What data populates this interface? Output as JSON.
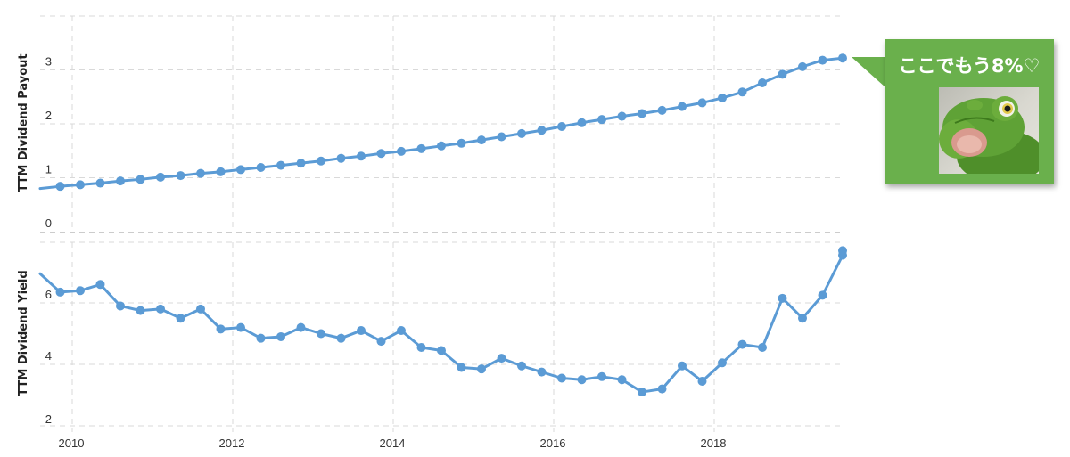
{
  "chart_data": [
    {
      "type": "line",
      "ylabel": "TTM Dividend Payout",
      "yticks": [
        "0",
        "1",
        "2",
        "3"
      ],
      "ylim": [
        0,
        3.25
      ],
      "xlim": [
        2009.6,
        2019.6
      ],
      "grid": true,
      "series": [
        {
          "x": [
            2009.6,
            2009.85,
            2010.1,
            2010.35,
            2010.6,
            2010.85,
            2011.1,
            2011.35,
            2011.6,
            2011.85,
            2012.1,
            2012.35,
            2012.6,
            2012.85,
            2013.1,
            2013.35,
            2013.6,
            2013.85,
            2014.1,
            2014.35,
            2014.6,
            2014.85,
            2015.1,
            2015.35,
            2015.6,
            2015.85,
            2016.1,
            2016.35,
            2016.6,
            2016.85,
            2017.1,
            2017.35,
            2017.6,
            2017.85,
            2018.1,
            2018.35,
            2018.6,
            2018.85,
            2019.1,
            2019.35,
            2019.6
          ],
          "values": [
            0.8,
            0.84,
            0.87,
            0.9,
            0.94,
            0.97,
            1.01,
            1.04,
            1.08,
            1.11,
            1.15,
            1.19,
            1.23,
            1.27,
            1.31,
            1.36,
            1.4,
            1.45,
            1.49,
            1.54,
            1.59,
            1.64,
            1.7,
            1.76,
            1.82,
            1.88,
            1.95,
            2.02,
            2.08,
            2.14,
            2.19,
            2.25,
            2.32,
            2.39,
            2.48,
            2.59,
            2.76,
            2.92,
            3.06,
            3.18,
            3.22
          ]
        }
      ]
    },
    {
      "type": "line",
      "ylabel": "TTM Dividend Yield",
      "yticks": [
        "2",
        "4",
        "6"
      ],
      "ylim": [
        1.9,
        7.8
      ],
      "xlim": [
        2009.6,
        2019.6
      ],
      "xticks": [
        "2010",
        "2012",
        "2014",
        "2016",
        "2018"
      ],
      "grid": true,
      "series": [
        {
          "x": [
            2009.6,
            2009.85,
            2010.1,
            2010.35,
            2010.6,
            2010.85,
            2011.1,
            2011.35,
            2011.6,
            2011.85,
            2012.1,
            2012.35,
            2012.6,
            2012.85,
            2013.1,
            2013.35,
            2013.6,
            2013.85,
            2014.1,
            2014.35,
            2014.6,
            2014.85,
            2015.1,
            2015.35,
            2015.6,
            2015.85,
            2016.1,
            2016.35,
            2016.6,
            2016.85,
            2017.1,
            2017.35,
            2017.6,
            2017.85,
            2018.1,
            2018.35,
            2018.6,
            2018.85,
            2019.1,
            2019.35,
            2019.6,
            2019.6
          ],
          "values": [
            6.95,
            6.35,
            6.4,
            6.6,
            5.9,
            5.75,
            5.8,
            5.5,
            5.8,
            5.15,
            5.2,
            4.85,
            4.9,
            5.2,
            5.0,
            4.85,
            5.1,
            4.75,
            5.1,
            4.55,
            4.45,
            3.9,
            3.85,
            4.2,
            3.95,
            3.75,
            3.55,
            3.5,
            3.6,
            3.5,
            3.1,
            3.2,
            3.95,
            3.45,
            4.05,
            4.65,
            4.55,
            6.15,
            5.5,
            6.25,
            7.55,
            7.7
          ]
        }
      ]
    }
  ],
  "callout": {
    "text": "ここでもう8%♡",
    "image": "frog-plush-photo",
    "color": "#6ab04c"
  },
  "colors": {
    "line": "#5b9bd5",
    "grid": "#d9d9d9"
  }
}
